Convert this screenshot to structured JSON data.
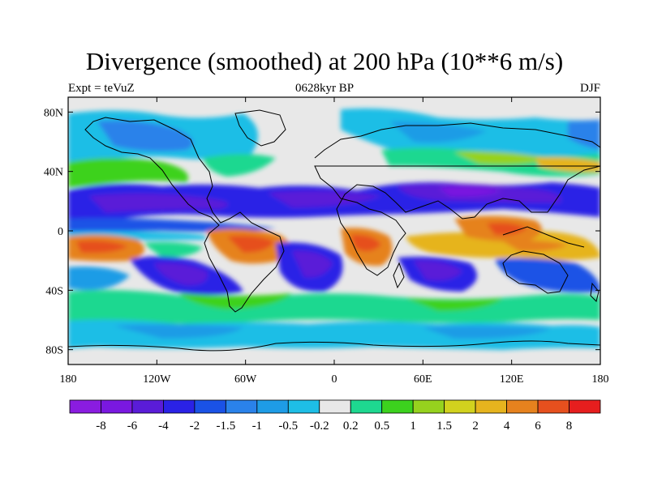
{
  "title": "Divergence (smoothed) at 200 hPa (10**6 m/s)",
  "left_subtitle": "Expt = teVuZ",
  "center_subtitle": "0628kyr BP",
  "right_subtitle": "DJF",
  "axes": {
    "x_ticks": [
      {
        "value": -180,
        "label": "180"
      },
      {
        "value": -120,
        "label": "120W"
      },
      {
        "value": -60,
        "label": "60W"
      },
      {
        "value": 0,
        "label": "0"
      },
      {
        "value": 60,
        "label": "60E"
      },
      {
        "value": 120,
        "label": "120E"
      },
      {
        "value": 180,
        "label": "180"
      }
    ],
    "y_ticks": [
      {
        "value": 80,
        "label": "80N"
      },
      {
        "value": 40,
        "label": "40N"
      },
      {
        "value": 0,
        "label": "0"
      },
      {
        "value": -40,
        "label": "40S"
      },
      {
        "value": -80,
        "label": "80S"
      }
    ],
    "lon_range": [
      -180,
      180
    ],
    "lat_range": [
      -90,
      90
    ]
  },
  "colorbar": {
    "colors": [
      "#8a1ce0",
      "#7a18e0",
      "#5a1cd8",
      "#2a22e6",
      "#1a52e6",
      "#2a82ea",
      "#1e9ce6",
      "#1ebee6",
      "#e8e8e8",
      "#1ed890",
      "#3cd21e",
      "#96d21e",
      "#d2d21e",
      "#e6b41e",
      "#e6821e",
      "#e6501e",
      "#e61e1e"
    ],
    "labels": [
      "-8",
      "-6",
      "-4",
      "-2",
      "-1.5",
      "-1",
      "-0.5",
      "-0.2",
      "0.2",
      "0.5",
      "1",
      "1.5",
      "2",
      "4",
      "6",
      "8"
    ]
  }
}
